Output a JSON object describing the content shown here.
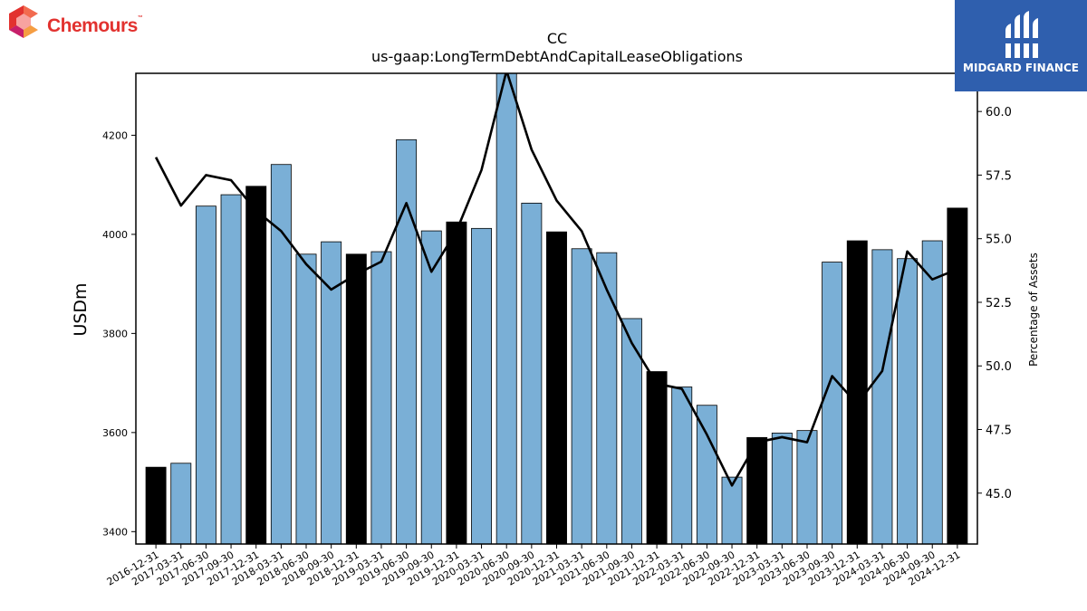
{
  "logos": {
    "company": "Chemours",
    "company_mark": "™",
    "publisher": "MIDGARD FINANCE"
  },
  "chart_data": {
    "type": "bar",
    "title": "CC",
    "subtitle": "us-gaap:LongTermDebtAndCapitalLeaseObligations",
    "ylabel": "USDm",
    "ylabel_right": "Percentage of Assets",
    "ylim": [
      3375,
      4325
    ],
    "ylim_right": [
      43.0,
      61.5
    ],
    "yticks": [
      3400,
      3600,
      3800,
      4000,
      4200
    ],
    "yticks_right": [
      "45.0",
      "47.5",
      "50.0",
      "52.5",
      "55.0",
      "57.5",
      "60.0"
    ],
    "grid": false,
    "categories": [
      "2016-12-31",
      "2017-03-31",
      "2017-06-30",
      "2017-09-30",
      "2017-12-31",
      "2018-03-31",
      "2018-06-30",
      "2018-09-30",
      "2018-12-31",
      "2019-03-31",
      "2019-06-30",
      "2019-09-30",
      "2019-12-31",
      "2020-03-31",
      "2020-06-30",
      "2020-09-30",
      "2020-12-31",
      "2021-03-31",
      "2021-06-30",
      "2021-09-30",
      "2021-12-31",
      "2022-03-31",
      "2022-06-30",
      "2022-09-30",
      "2022-12-31",
      "2023-03-31",
      "2023-06-30",
      "2023-09-30",
      "2023-12-31",
      "2024-03-31",
      "2024-06-30",
      "2024-09-30",
      "2024-12-31"
    ],
    "series": [
      {
        "type": "bar",
        "values": [
          3530,
          3538,
          4057,
          4080,
          4097,
          4141,
          3960,
          3985,
          3960,
          3965,
          4191,
          4007,
          4025,
          4012,
          4330,
          4063,
          4005,
          3971,
          3963,
          3830,
          3723,
          3692,
          3655,
          3510,
          3590,
          3599,
          3604,
          3944,
          3987,
          3969,
          3951,
          3987,
          4053
        ],
        "year_end_color": "#000000",
        "color": "#7aafd6"
      },
      {
        "type": "line",
        "axis": "right",
        "color": "#000000",
        "values": [
          58.2,
          56.3,
          57.5,
          57.3,
          56.1,
          55.3,
          54.0,
          53.0,
          53.6,
          54.1,
          56.4,
          53.7,
          55.3,
          57.7,
          61.6,
          58.5,
          56.5,
          55.3,
          53.0,
          50.9,
          49.3,
          49.1,
          47.3,
          45.3,
          47.0,
          47.2,
          47.0,
          49.6,
          48.5,
          49.8,
          54.5,
          53.4,
          53.8
        ]
      }
    ]
  }
}
